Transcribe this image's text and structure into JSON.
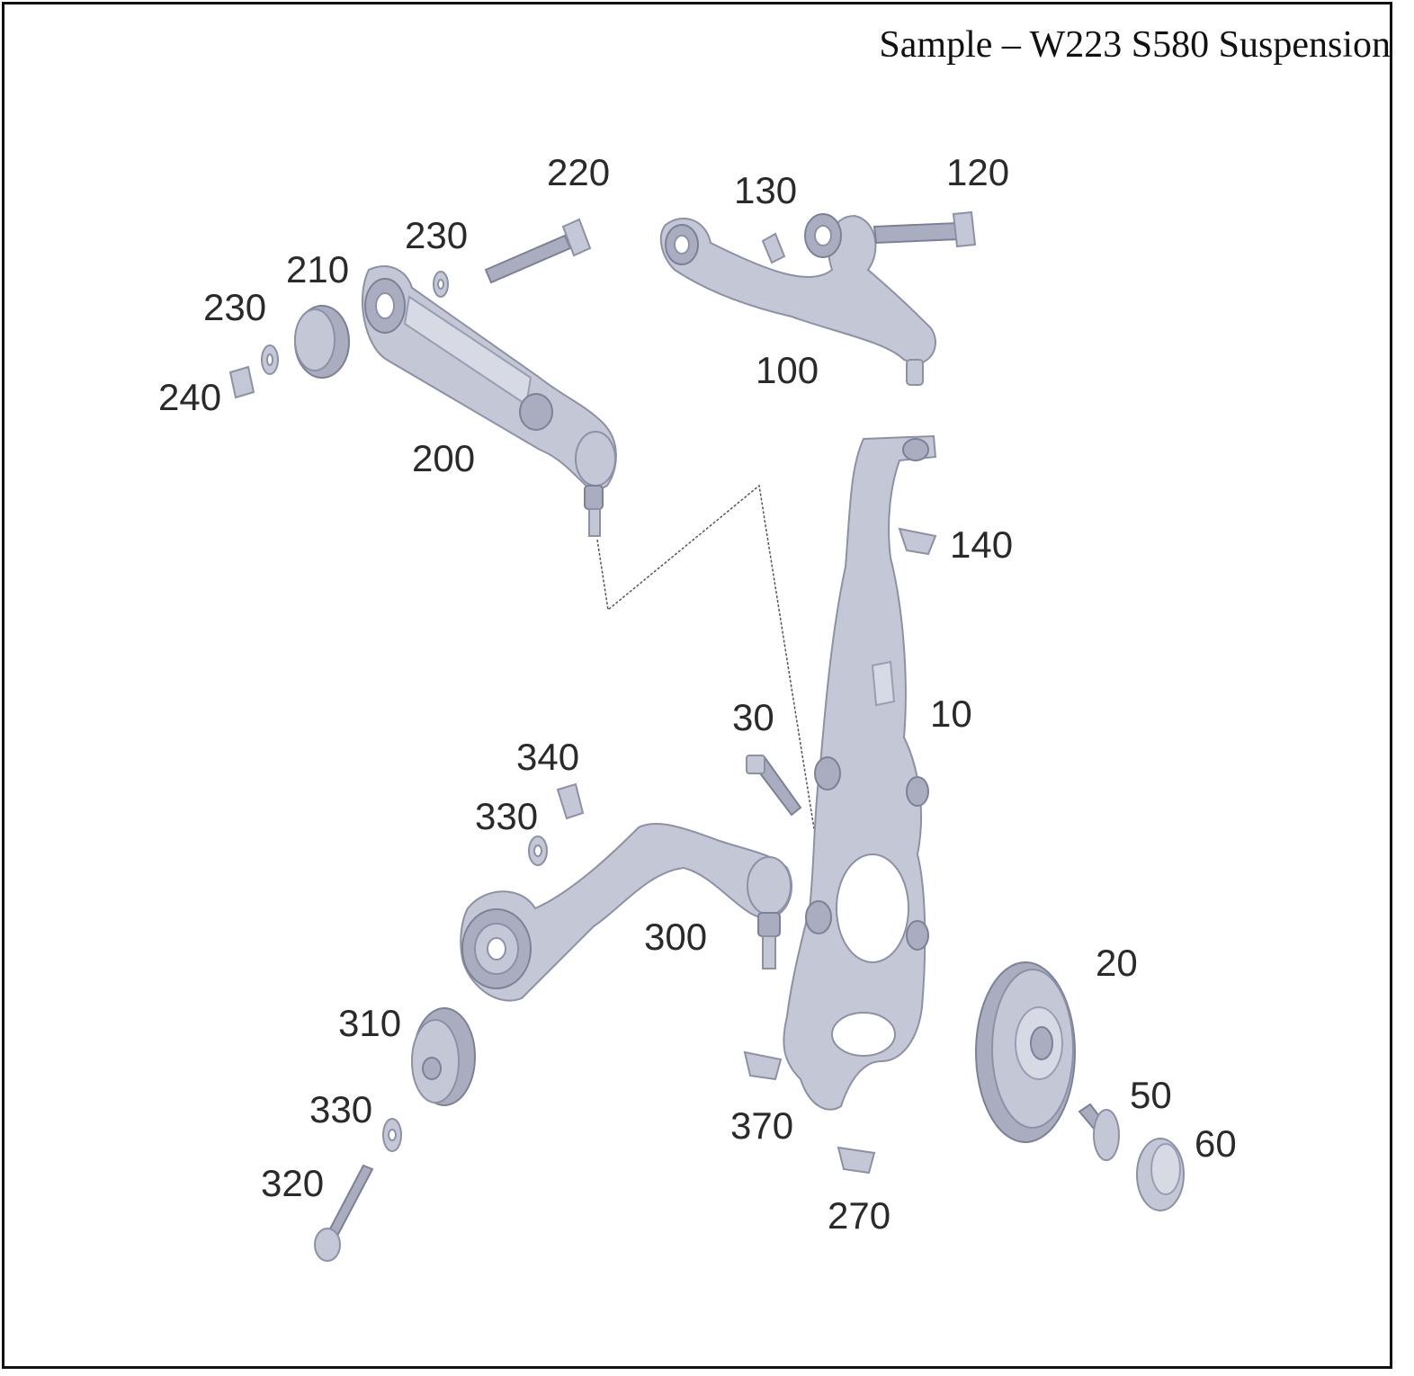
{
  "title": "Sample – W223 S580 Suspension",
  "colors": {
    "part_fill": "#c4c7d6",
    "part_stroke": "#8d91a6",
    "label": "#2a2a2a",
    "frame": "#111111"
  },
  "callouts": {
    "p10": "10",
    "p20": "20",
    "p30": "30",
    "p50": "50",
    "p60": "60",
    "p100": "100",
    "p120": "120",
    "p130": "130",
    "p140": "140",
    "p200": "200",
    "p210": "210",
    "p220": "220",
    "p230a": "230",
    "p230b": "230",
    "p240": "240",
    "p270": "270",
    "p300": "300",
    "p310": "310",
    "p320": "320",
    "p330a": "330",
    "p330b": "330",
    "p340": "340",
    "p370": "370"
  }
}
